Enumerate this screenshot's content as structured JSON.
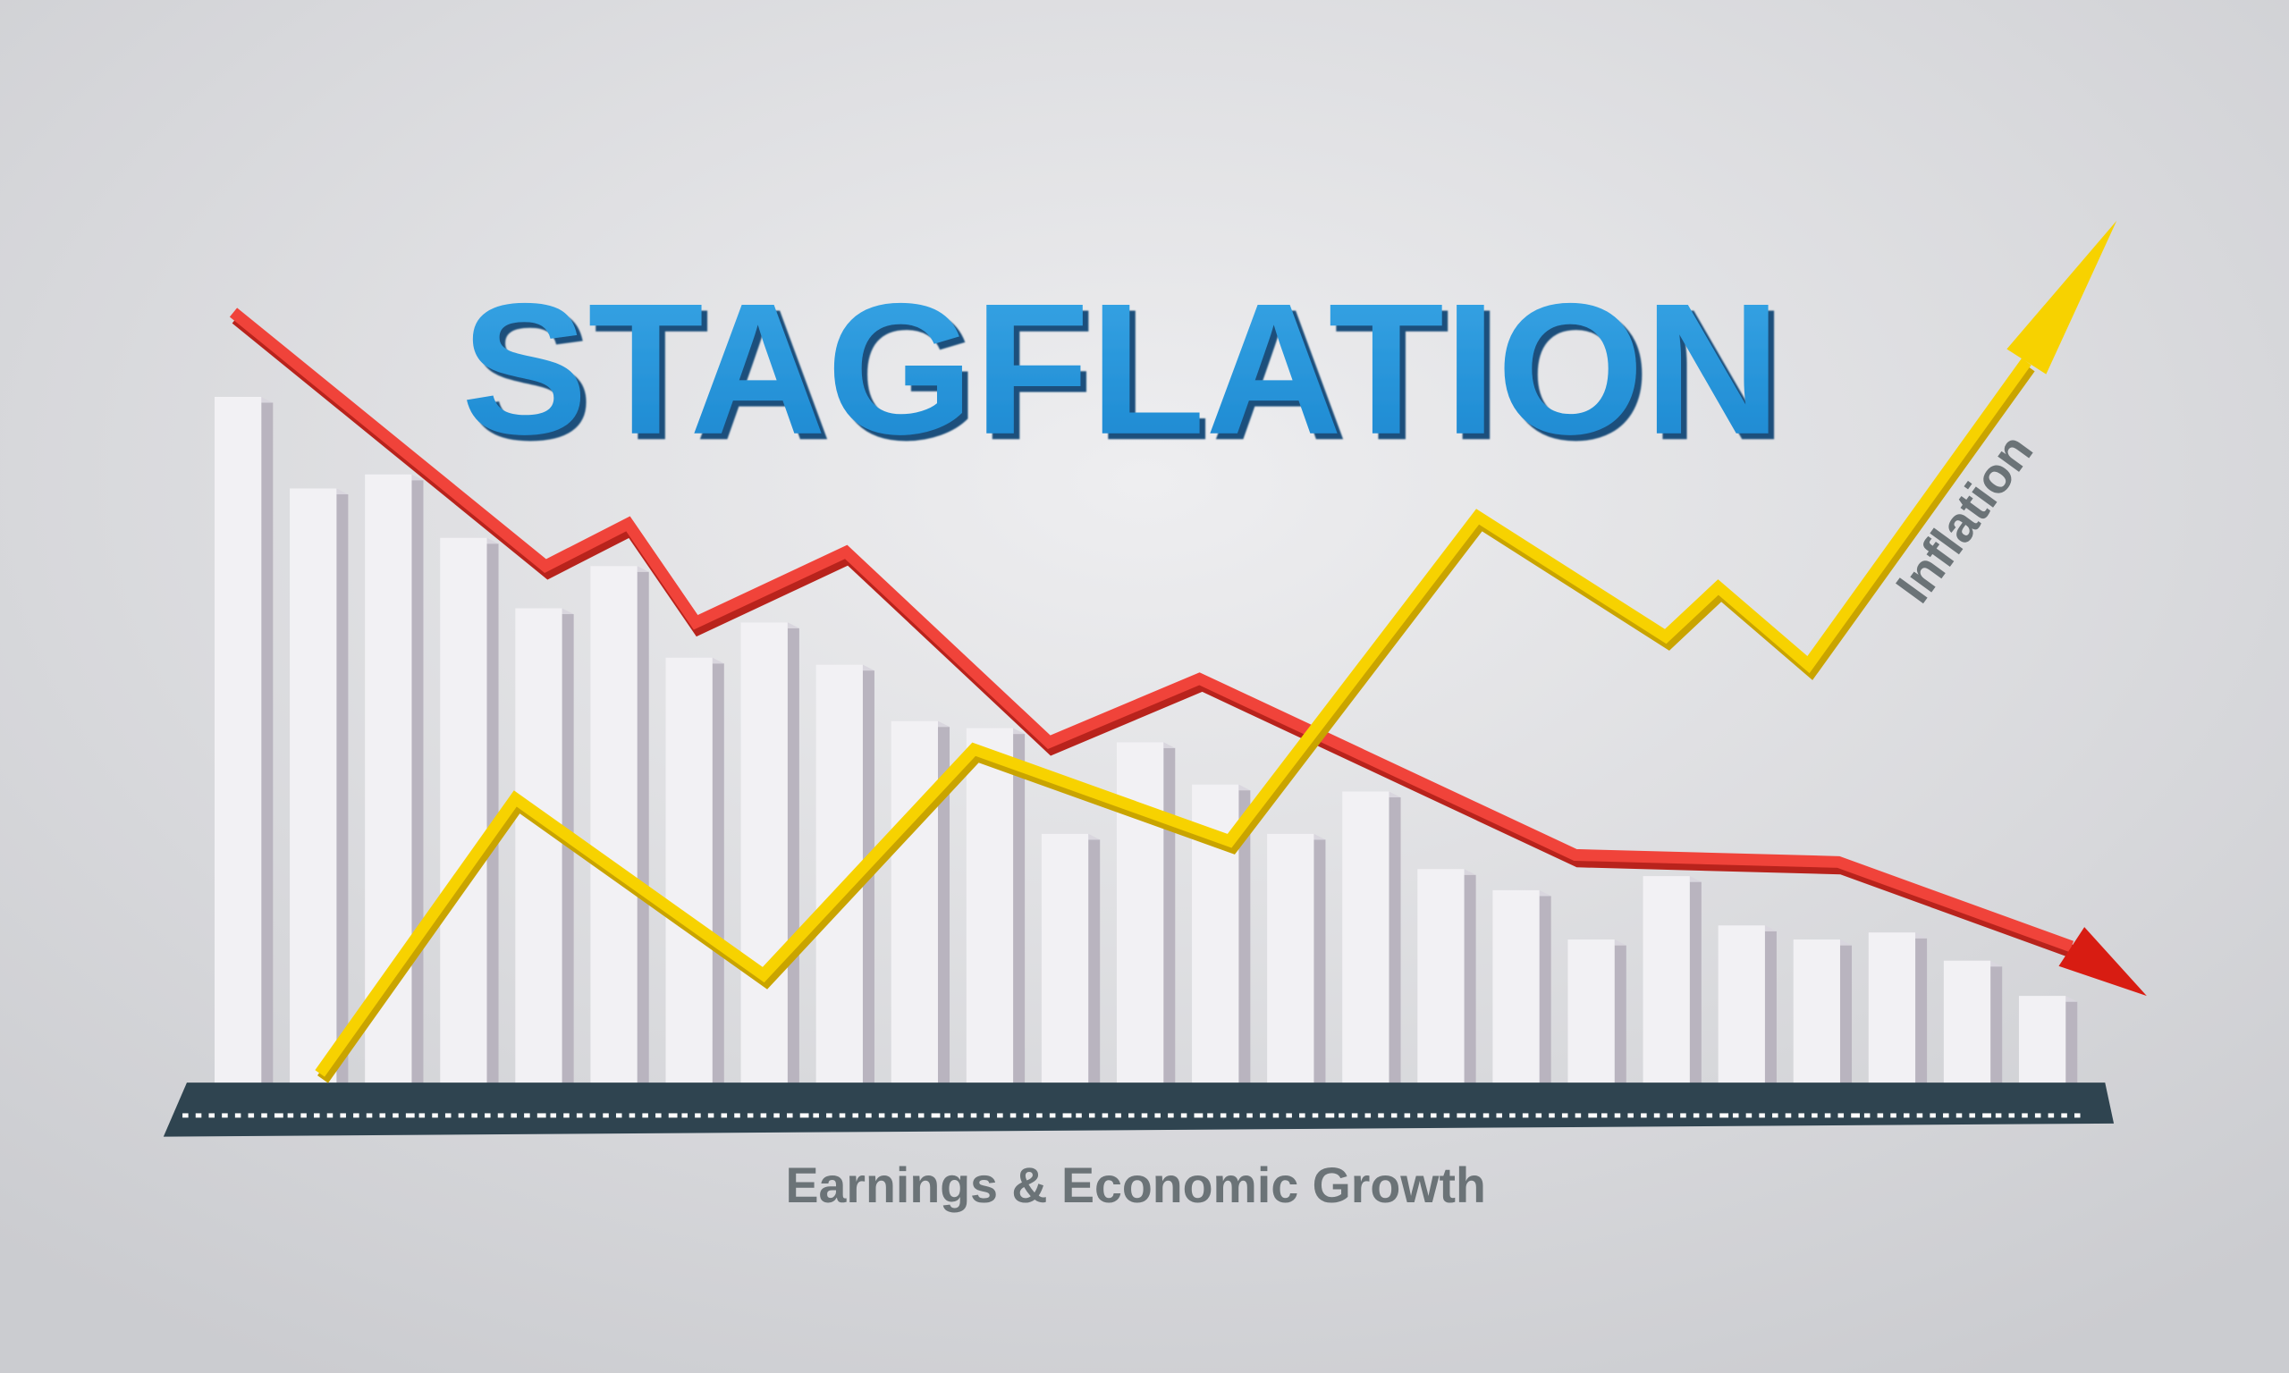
{
  "title": "STAGFLATION",
  "colors": {
    "title": "#1e8fd6",
    "bars": "#f2f1f4",
    "bar_shade": "#b9b4bf",
    "base": "#2f4450",
    "red_line": "#f0433a",
    "yellow_line": "#f7d200",
    "label": "#6b7377"
  },
  "chart_data": {
    "type": "bar",
    "title": "STAGFLATION",
    "xlabel": "Earnings & Economic Growth",
    "ylabel": "",
    "grid": false,
    "values_note_units": "relative height, tallest bar = 100",
    "values": [
      100,
      87,
      89,
      80,
      70,
      76,
      63,
      68,
      62,
      54,
      53,
      38,
      51,
      45,
      38,
      44,
      33,
      30,
      23,
      32,
      25,
      23,
      24,
      20,
      15
    ],
    "series": [
      {
        "name": "",
        "type": "line",
        "color": "#f0433a",
        "trend": "down",
        "points": [
          [
            0.25,
            112
          ],
          [
            4.4,
            76
          ],
          [
            5.5,
            82
          ],
          [
            6.4,
            68
          ],
          [
            8.4,
            78
          ],
          [
            11.1,
            51
          ],
          [
            13.1,
            60
          ],
          [
            18.1,
            35
          ],
          [
            21.6,
            34
          ],
          [
            24.7,
            22
          ],
          [
            25.7,
            15
          ]
        ]
      },
      {
        "name": "Inflation",
        "type": "line",
        "color": "#f7d200",
        "trend": "up",
        "points": [
          [
            1.4,
            4
          ],
          [
            4.0,
            43
          ],
          [
            7.3,
            18
          ],
          [
            10.1,
            50
          ],
          [
            13.5,
            37
          ],
          [
            16.8,
            83
          ],
          [
            19.3,
            66
          ],
          [
            20.0,
            73
          ],
          [
            21.2,
            62
          ],
          [
            24.1,
            105
          ],
          [
            25.3,
            125
          ]
        ]
      }
    ]
  }
}
